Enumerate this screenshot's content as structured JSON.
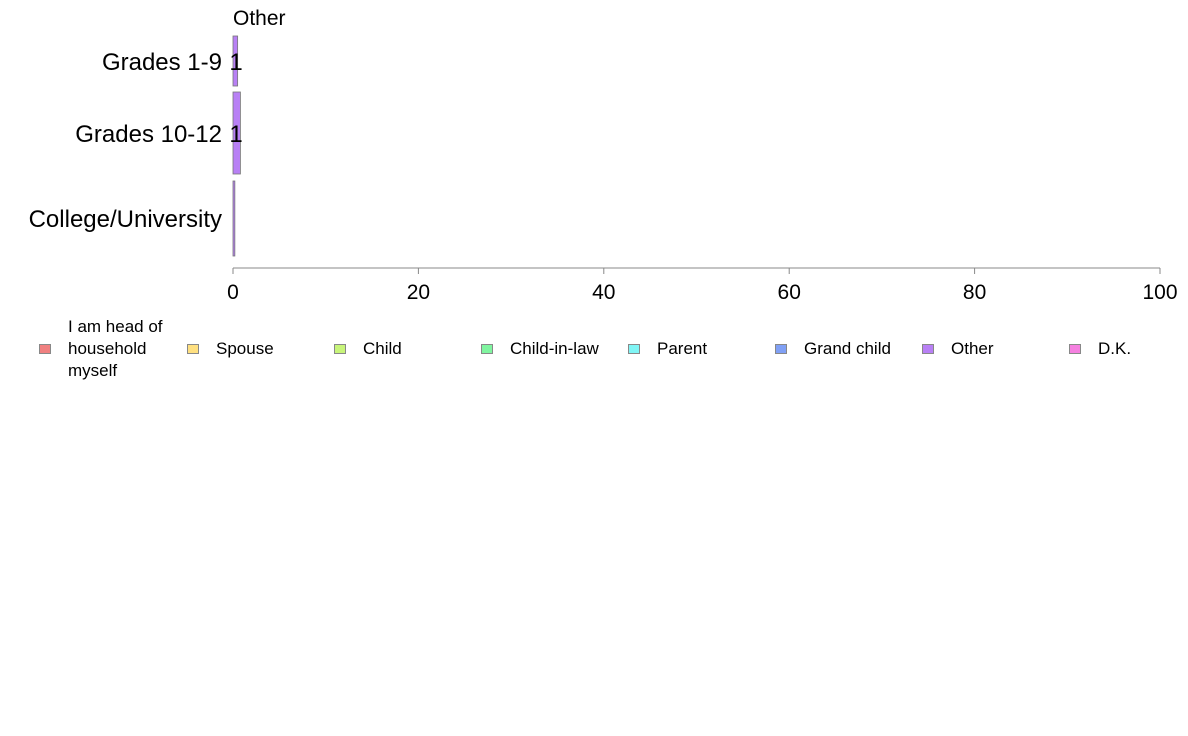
{
  "chart_data": {
    "type": "bar",
    "orientation": "horizontal",
    "stacked": true,
    "title": "",
    "xlabel": "",
    "ylabel": "",
    "xlim": [
      0,
      100
    ],
    "x_ticks": [
      "0",
      "20",
      "40",
      "60",
      "80",
      "100"
    ],
    "categories": [
      "Grades 1-9",
      "Grades 10-12",
      "College/University"
    ],
    "series": [
      {
        "name": "I am head of household myself",
        "color": "#f08080",
        "values": [
          0,
          0,
          0
        ]
      },
      {
        "name": "Spouse",
        "color": "#ffe080",
        "values": [
          0,
          0,
          0
        ]
      },
      {
        "name": "Child",
        "color": "#c8f57a",
        "values": [
          0,
          0,
          0
        ]
      },
      {
        "name": "Child-in-law",
        "color": "#80f5a0",
        "values": [
          0,
          0,
          0
        ]
      },
      {
        "name": "Parent",
        "color": "#80f5f5",
        "values": [
          0,
          0,
          0
        ]
      },
      {
        "name": "Grand child",
        "color": "#80a0f5",
        "values": [
          0,
          0,
          0
        ]
      },
      {
        "name": "Other",
        "color": "#b880f5",
        "values": [
          0.5,
          0.8,
          0.2
        ]
      },
      {
        "name": "D.K.",
        "color": "#f580e0",
        "values": [
          0,
          0,
          0
        ]
      }
    ],
    "data_labels": [
      "1",
      "1",
      ""
    ],
    "top_annotation": "Other",
    "legend_position": "bottom",
    "legend_labels": [
      "I am head of\nhousehold\nmyself",
      "Spouse",
      "Child",
      "Child-in-law",
      "Parent",
      "Grand child",
      "Other",
      "D.K."
    ]
  }
}
